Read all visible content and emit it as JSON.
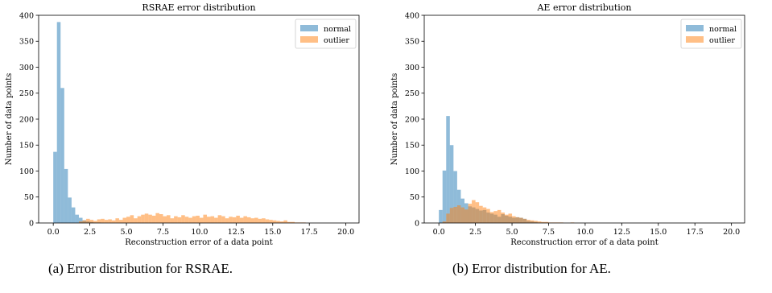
{
  "colors": {
    "normal": "#1f77b4",
    "outlier": "#ff7f0e"
  },
  "captions": [
    "(a) Error distribution for RSRAE.",
    "(b) Error distribution for AE."
  ],
  "chart_data": [
    {
      "type": "bar",
      "title": "RSRAE error distribution",
      "xlabel": "Reconstruction error of a data point",
      "ylabel": "Number of data points",
      "xlim": [
        -1.0,
        20.9
      ],
      "ylim": [
        0,
        400
      ],
      "xticks": [
        "0.0",
        "2.5",
        "5.0",
        "7.5",
        "10.0",
        "12.5",
        "15.0",
        "17.5",
        "20.0"
      ],
      "yticks": [
        "0",
        "50",
        "100",
        "150",
        "200",
        "250",
        "300",
        "350",
        "400"
      ],
      "legend": {
        "placement": "top-right",
        "entries": [
          "normal",
          "outlier"
        ]
      },
      "bin_width": 0.25,
      "x_start": 0.0,
      "series": [
        {
          "name": "normal",
          "values": [
            137,
            387,
            260,
            104,
            49,
            30,
            16,
            10,
            5,
            3,
            2,
            1,
            1,
            0,
            0,
            0,
            0,
            0,
            0,
            0,
            0,
            0,
            0,
            0,
            0,
            0,
            0,
            0,
            0,
            0,
            0,
            0,
            0,
            0,
            0,
            0,
            0,
            0,
            0,
            0,
            0,
            0,
            0,
            0,
            0,
            0,
            0,
            0,
            0,
            0,
            0,
            0,
            0,
            0,
            0,
            0,
            0,
            0,
            0,
            0,
            0,
            0,
            0,
            0,
            0,
            0,
            0,
            0,
            0,
            0,
            0,
            0,
            0,
            0,
            0,
            0,
            0,
            0,
            0,
            0
          ]
        },
        {
          "name": "outlier",
          "values": [
            0,
            0,
            0,
            0,
            0,
            0,
            0,
            3,
            5,
            8,
            6,
            4,
            7,
            8,
            6,
            7,
            5,
            9,
            6,
            10,
            12,
            15,
            9,
            13,
            16,
            18,
            16,
            14,
            19,
            17,
            13,
            15,
            9,
            13,
            11,
            15,
            12,
            10,
            13,
            14,
            10,
            16,
            12,
            13,
            10,
            15,
            13,
            9,
            12,
            11,
            14,
            10,
            13,
            11,
            9,
            10,
            8,
            9,
            7,
            6,
            5,
            4,
            3,
            5,
            2,
            2,
            1,
            1,
            1,
            0,
            0,
            0,
            0,
            0,
            0,
            0,
            0,
            0,
            0,
            0
          ]
        }
      ]
    },
    {
      "type": "bar",
      "title": "AE error distribution",
      "xlabel": "Reconstruction error of a data point",
      "ylabel": "Number of data points",
      "xlim": [
        -1.0,
        20.9
      ],
      "ylim": [
        0,
        400
      ],
      "xticks": [
        "0.0",
        "2.5",
        "5.0",
        "7.5",
        "10.0",
        "12.5",
        "15.0",
        "17.5",
        "20.0"
      ],
      "yticks": [
        "0",
        "50",
        "100",
        "150",
        "200",
        "250",
        "300",
        "350",
        "400"
      ],
      "legend": {
        "placement": "top-right",
        "entries": [
          "normal",
          "outlier"
        ]
      },
      "bin_width": 0.25,
      "x_start": 0.0,
      "series": [
        {
          "name": "normal",
          "values": [
            25,
            101,
            206,
            150,
            100,
            64,
            47,
            38,
            32,
            30,
            27,
            24,
            25,
            20,
            18,
            16,
            12,
            17,
            14,
            12,
            10,
            11,
            10,
            8,
            4,
            3,
            2,
            1,
            1,
            1,
            0,
            0,
            0,
            0,
            0,
            0,
            0,
            0,
            0,
            0,
            0,
            0,
            0,
            0,
            0,
            0,
            0,
            0,
            0,
            0,
            0,
            0,
            0,
            0,
            0,
            0,
            0,
            0,
            0,
            0,
            0,
            0,
            0,
            0,
            0,
            0,
            0,
            0,
            0,
            0,
            0,
            0,
            0,
            0,
            0,
            0,
            0,
            0,
            0,
            0
          ]
        },
        {
          "name": "outlier",
          "values": [
            0,
            3,
            18,
            29,
            31,
            34,
            30,
            26,
            37,
            44,
            40,
            33,
            30,
            27,
            21,
            23,
            25,
            20,
            16,
            18,
            13,
            11,
            10,
            8,
            6,
            5,
            4,
            3,
            2,
            2,
            1,
            1,
            1,
            1,
            0,
            0,
            1,
            0,
            0,
            0,
            0,
            0,
            0,
            0,
            0,
            0,
            0,
            0,
            0,
            0,
            0,
            0,
            0,
            0,
            0,
            0,
            0,
            0,
            0,
            0,
            0,
            0,
            0,
            0,
            0,
            0,
            0,
            0,
            0,
            0,
            0,
            0,
            0,
            0,
            0,
            0,
            0,
            0,
            0,
            0
          ]
        }
      ]
    }
  ]
}
